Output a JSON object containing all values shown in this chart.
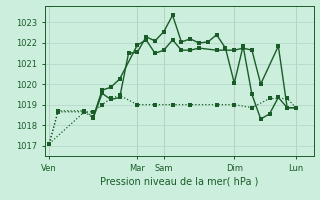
{
  "bg_color": "#cceedd",
  "grid_color": "#b8d8cc",
  "vline_color": "#cc9999",
  "line_color": "#1a5c28",
  "title": "Pression niveau de la mer( hPa )",
  "ylim": [
    1016.5,
    1023.8
  ],
  "yticks": [
    1017,
    1018,
    1019,
    1020,
    1021,
    1022,
    1023
  ],
  "x_day_labels": [
    "Ven",
    "Mar",
    "Sam",
    "Dim",
    "Lun"
  ],
  "x_day_positions": [
    0,
    10,
    13,
    21,
    28
  ],
  "xlim": [
    -0.5,
    30
  ],
  "line1_x": [
    0,
    1,
    4,
    5,
    6,
    7,
    8,
    9,
    10,
    11,
    12,
    13,
    14,
    15,
    16,
    17,
    18,
    19,
    20,
    21,
    22,
    23,
    24,
    25,
    26,
    27,
    28
  ],
  "line1_y": [
    1017.1,
    1018.65,
    1018.65,
    1018.35,
    1019.55,
    1019.25,
    1019.35,
    1021.5,
    1021.55,
    1022.3,
    1022.1,
    1022.55,
    1023.35,
    1022.05,
    1022.2,
    1022.0,
    1022.05,
    1022.4,
    1021.75,
    1020.05,
    1021.85,
    1019.5,
    1018.3,
    1018.55,
    1019.35,
    1018.85,
    1018.85
  ],
  "line2_x": [
    0,
    1,
    4,
    5,
    6,
    7,
    8,
    10,
    11,
    12,
    13,
    14,
    15,
    16,
    17,
    19,
    21,
    22,
    23,
    24,
    26,
    27,
    28
  ],
  "line2_y": [
    1017.1,
    1018.7,
    1018.7,
    1018.4,
    1019.7,
    1019.85,
    1020.25,
    1021.9,
    1022.15,
    1021.5,
    1021.65,
    1022.15,
    1021.65,
    1021.65,
    1021.75,
    1021.65,
    1021.65,
    1021.75,
    1021.65,
    1020.0,
    1021.85,
    1018.85,
    1018.85
  ],
  "line3_x": [
    0,
    4,
    5,
    6,
    7,
    8,
    10,
    12,
    14,
    16,
    19,
    21,
    23,
    25,
    27,
    28
  ],
  "line3_y": [
    1017.1,
    1018.65,
    1018.65,
    1019.0,
    1019.3,
    1019.45,
    1019.0,
    1019.0,
    1019.0,
    1019.0,
    1019.0,
    1019.0,
    1018.85,
    1019.3,
    1019.3,
    1018.85
  ],
  "line1_dotted_end": 3,
  "line2_dotted_end": 3
}
